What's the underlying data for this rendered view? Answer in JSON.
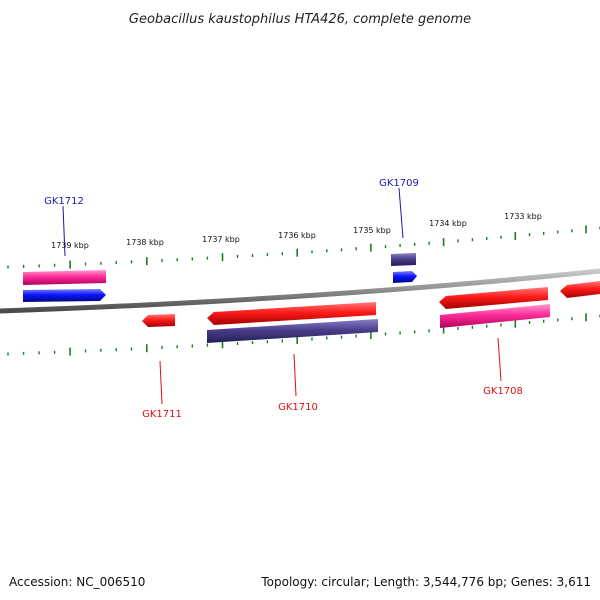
{
  "title": "Geobacillus kaustophilus HTA426, complete genome",
  "footer": {
    "accession": "Accession: NC_006510",
    "topology": "Topology: circular; Length: 3,544,776 bp; Genes: 3,611"
  },
  "colors": {
    "backbone": "#8a8a8a",
    "tick": "#1f7a1f",
    "gene_red": "#ff1a1a",
    "gene_pink": "#ff2d9a",
    "gene_blue": "#0a14ff",
    "gene_purple": "#4a3f8c",
    "label_blue": "#1a1aa8",
    "label_red": "#e01010"
  },
  "tick_labels": [
    {
      "text": "1739 kbp"
    },
    {
      "text": "1738 kbp"
    },
    {
      "text": "1737 kbp"
    },
    {
      "text": "1736 kbp"
    },
    {
      "text": "1735 kbp"
    },
    {
      "text": "1734 kbp"
    },
    {
      "text": "1733 kbp"
    }
  ],
  "gene_labels": [
    {
      "text": "GK1712",
      "color": "blue"
    },
    {
      "text": "GK1709",
      "color": "blue"
    },
    {
      "text": "GK1711",
      "color": "red"
    },
    {
      "text": "GK1710",
      "color": "red"
    },
    {
      "text": "GK1708",
      "color": "red"
    }
  ]
}
